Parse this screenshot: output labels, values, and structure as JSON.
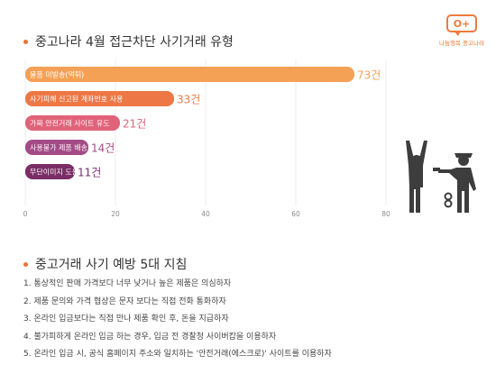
{
  "logo": {
    "mark": "O+",
    "caption": "나눔행복 중고나라"
  },
  "section1": {
    "title": "중고나라 4월 접근차단 사기거래 유형"
  },
  "section2": {
    "title": "중고거래 사기 예방 5대 지침"
  },
  "chart_data": {
    "type": "bar",
    "orientation": "horizontal",
    "title": "중고나라 4월 접근차단 사기거래 유형",
    "categories": [
      "물품 미발송(먹튀)",
      "사기피해 신고된 계좌번호 사용",
      "가짜 안전거래 사이트 유도",
      "사용불가 제품 배송",
      "무단이미지 도용"
    ],
    "values": [
      73,
      33,
      21,
      14,
      11
    ],
    "value_labels": [
      "73건",
      "33건",
      "21건",
      "14건",
      "11건"
    ],
    "unit": "건",
    "xlim": [
      0,
      80
    ],
    "xticks": [
      "0",
      "20",
      "40",
      "60",
      "80"
    ],
    "colors": [
      "#f4a156",
      "#ed7845",
      "#e0637a",
      "#a44a86",
      "#7a2d66"
    ],
    "grid": true,
    "legend": "none"
  },
  "guidelines": [
    "1. 통상적인 판매 가격보다 너무 낮거나 높은 제품은 의심하자",
    "2. 제품 문의와 가격 협상은 문자 보다는 직접 전화 통화하자",
    "3. 온라인 입금보다는 직접 만나 제품 확인 후, 돈을 지급하자",
    "4. 불가피하게 온라인 입금 하는 경우, 입금 전 경찰청 사이버캅을 이용하자",
    "5. 온라인 입금 시, 공식 홈페이지 주소와 일치하는 '안전거래(에스크로)' 사이트를 이용하자"
  ],
  "illustration": {
    "icon": "police-arrest-icon",
    "color": "#3d3d3d"
  }
}
